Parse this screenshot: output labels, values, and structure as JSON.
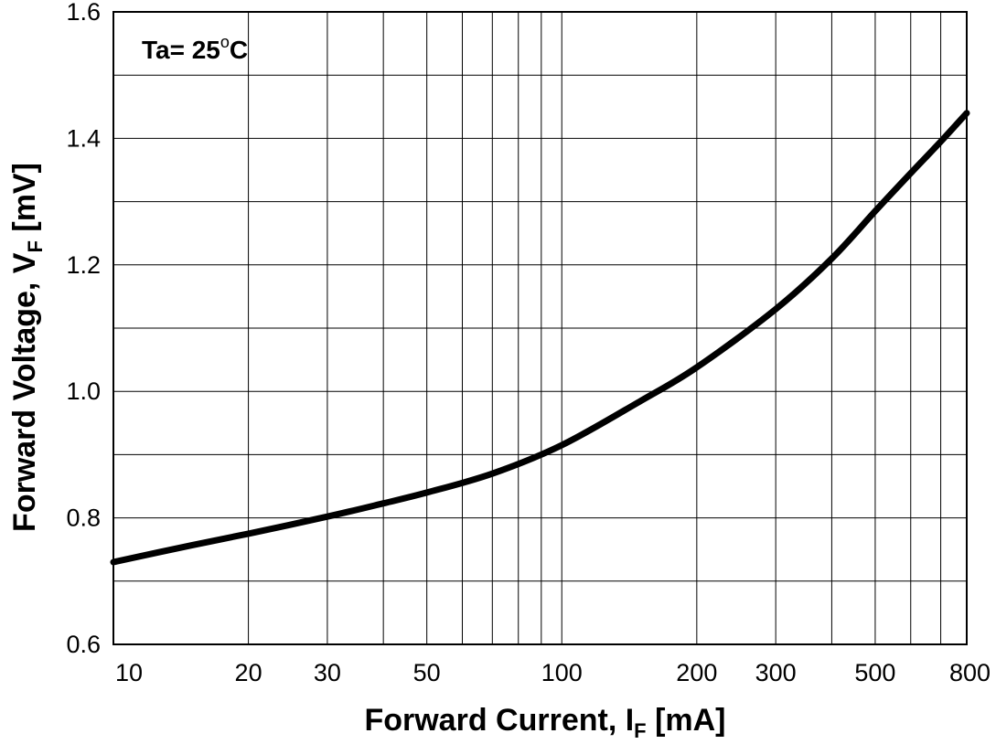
{
  "chart_data": {
    "type": "line",
    "annotation": {
      "prefix": "Ta= 25",
      "degree": "o",
      "unit": "C"
    },
    "xlabel": {
      "main": "Forward Current, I",
      "sub": "F",
      "unit": " [mA]"
    },
    "ylabel": {
      "main": "Forward Voltage, V",
      "sub": "F",
      "unit": " [mV]"
    },
    "x_scale": "log",
    "xlim": [
      10,
      800
    ],
    "ylim": [
      0.6,
      1.6
    ],
    "x_ticks": [
      10,
      20,
      30,
      50,
      100,
      200,
      300,
      500,
      800
    ],
    "x_tick_labels": [
      "10",
      "20",
      "30",
      "50",
      "100",
      "200",
      "300",
      "500",
      "800"
    ],
    "x_minor_grid": [
      40,
      60,
      70,
      80,
      90,
      400,
      600,
      700
    ],
    "y_ticks": [
      0.6,
      0.8,
      1.0,
      1.2,
      1.4,
      1.6
    ],
    "y_tick_labels": [
      "0.6",
      "0.8",
      "1.0",
      "1.2",
      "1.4",
      "1.6"
    ],
    "y_minor_grid": [
      0.7,
      0.9,
      1.1,
      1.3,
      1.5
    ],
    "grid": true,
    "legend": "none",
    "series": [
      {
        "color": "#000000",
        "x": [
          10,
          15,
          20,
          30,
          40,
          50,
          70,
          100,
          150,
          200,
          300,
          400,
          500,
          600,
          700,
          800
        ],
        "y": [
          0.73,
          0.757,
          0.775,
          0.802,
          0.823,
          0.84,
          0.87,
          0.915,
          0.985,
          1.038,
          1.13,
          1.21,
          1.285,
          1.345,
          1.395,
          1.44
        ]
      }
    ]
  }
}
